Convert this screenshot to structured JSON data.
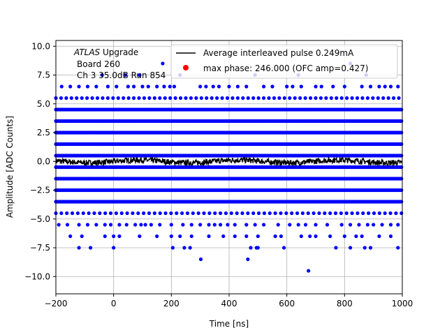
{
  "chart_data": {
    "type": "scatter",
    "xlabel": "Time [ns]",
    "ylabel": "Amplitude [ADC Counts]",
    "xlim": [
      -200,
      1000
    ],
    "ylim": [
      -11.5,
      10.5
    ],
    "grid": true,
    "xticks": [
      -200,
      0,
      200,
      400,
      600,
      800,
      1000
    ],
    "xtick_labels": [
      "−200",
      "0",
      "200",
      "400",
      "600",
      "800",
      "1000"
    ],
    "yticks": [
      -10.0,
      -7.5,
      -5.0,
      -2.5,
      0.0,
      2.5,
      5.0,
      7.5,
      10.0
    ],
    "ytick_labels": [
      "−10.0",
      "−7.5",
      "−5.0",
      "−2.5",
      "0.0",
      "2.5",
      "5.0",
      "7.5",
      "10.0"
    ],
    "annotation": {
      "line1_italic": "ATLAS",
      "line1_rest": " Upgrade",
      "line2": "Board 260",
      "line3": "Ch 3 35.0dB  Run 854"
    },
    "legend": {
      "placement": "top-right",
      "entries": [
        {
          "label": "Average interleaved pulse 0.249mA",
          "marker": "line",
          "color": "#000000"
        },
        {
          "label": "max phase: 246.000 (OFC amp=0.427)",
          "marker": "dot",
          "color": "#ff0000"
        }
      ]
    },
    "series": [
      {
        "kind": "dense_levels",
        "color": "#0000ff",
        "levels": [
          4.5,
          3.5,
          2.5,
          1.5,
          0.5,
          -0.5,
          -1.5,
          -2.5,
          -3.5
        ],
        "dense_levels_extra": [
          {
            "y": 5.5,
            "x_start": -200,
            "x_end": 1000,
            "step": 18
          },
          {
            "y": -4.5,
            "x_start": -200,
            "x_end": 1000,
            "step": 19
          }
        ]
      },
      {
        "kind": "sparse_points",
        "color": "#0000ff",
        "points": [
          [
            -180,
            6.5
          ],
          [
            -150,
            6.5
          ],
          [
            -120,
            6.5
          ],
          [
            -90,
            6.5
          ],
          [
            -60,
            6.5
          ],
          [
            -20,
            6.5
          ],
          [
            10,
            6.5
          ],
          [
            50,
            6.5
          ],
          [
            70,
            6.5
          ],
          [
            100,
            6.5
          ],
          [
            120,
            6.5
          ],
          [
            150,
            6.5
          ],
          [
            175,
            6.5
          ],
          [
            195,
            6.5
          ],
          [
            210,
            6.5
          ],
          [
            300,
            6.5
          ],
          [
            320,
            6.5
          ],
          [
            345,
            6.5
          ],
          [
            365,
            6.5
          ],
          [
            400,
            6.5
          ],
          [
            430,
            6.5
          ],
          [
            460,
            6.5
          ],
          [
            520,
            6.5
          ],
          [
            550,
            6.5
          ],
          [
            600,
            6.5
          ],
          [
            620,
            6.5
          ],
          [
            650,
            6.5
          ],
          [
            700,
            6.5
          ],
          [
            720,
            6.5
          ],
          [
            760,
            6.5
          ],
          [
            800,
            6.5
          ],
          [
            860,
            6.5
          ],
          [
            890,
            6.5
          ],
          [
            920,
            6.5
          ],
          [
            940,
            6.5
          ],
          [
            960,
            6.5
          ],
          [
            985,
            6.5
          ],
          [
            -40,
            7.5
          ],
          [
            40,
            7.5
          ],
          [
            90,
            7.5
          ],
          [
            230,
            7.5
          ],
          [
            490,
            7.5
          ],
          [
            640,
            7.5
          ],
          [
            875,
            7.5
          ],
          [
            170,
            8.5
          ],
          [
            820,
            8.5
          ],
          [
            -190,
            -5.5
          ],
          [
            -160,
            -5.5
          ],
          [
            -120,
            -5.5
          ],
          [
            -90,
            -5.5
          ],
          [
            -60,
            -5.5
          ],
          [
            -30,
            -5.5
          ],
          [
            -10,
            -5.5
          ],
          [
            20,
            -5.5
          ],
          [
            45,
            -5.5
          ],
          [
            75,
            -5.5
          ],
          [
            95,
            -5.5
          ],
          [
            110,
            -5.5
          ],
          [
            130,
            -5.5
          ],
          [
            160,
            -5.5
          ],
          [
            200,
            -5.5
          ],
          [
            240,
            -5.5
          ],
          [
            270,
            -5.5
          ],
          [
            300,
            -5.5
          ],
          [
            330,
            -5.5
          ],
          [
            350,
            -5.5
          ],
          [
            370,
            -5.5
          ],
          [
            395,
            -5.5
          ],
          [
            420,
            -5.5
          ],
          [
            460,
            -5.5
          ],
          [
            490,
            -5.5
          ],
          [
            520,
            -5.5
          ],
          [
            570,
            -5.5
          ],
          [
            610,
            -5.5
          ],
          [
            640,
            -5.5
          ],
          [
            665,
            -5.5
          ],
          [
            700,
            -5.5
          ],
          [
            740,
            -5.5
          ],
          [
            790,
            -5.5
          ],
          [
            820,
            -5.5
          ],
          [
            850,
            -5.5
          ],
          [
            880,
            -5.5
          ],
          [
            900,
            -5.5
          ],
          [
            930,
            -5.5
          ],
          [
            960,
            -5.5
          ],
          [
            985,
            -5.5
          ],
          [
            -150,
            -6.5
          ],
          [
            -110,
            -6.5
          ],
          [
            -30,
            -6.5
          ],
          [
            0,
            -6.5
          ],
          [
            20,
            -6.5
          ],
          [
            90,
            -6.5
          ],
          [
            150,
            -6.5
          ],
          [
            200,
            -6.5
          ],
          [
            230,
            -6.5
          ],
          [
            270,
            -6.5
          ],
          [
            330,
            -6.5
          ],
          [
            380,
            -6.5
          ],
          [
            420,
            -6.5
          ],
          [
            460,
            -6.5
          ],
          [
            500,
            -6.5
          ],
          [
            560,
            -6.5
          ],
          [
            580,
            -6.5
          ],
          [
            650,
            -6.5
          ],
          [
            680,
            -6.5
          ],
          [
            700,
            -6.5
          ],
          [
            750,
            -6.5
          ],
          [
            800,
            -6.5
          ],
          [
            840,
            -6.5
          ],
          [
            860,
            -6.5
          ],
          [
            920,
            -6.5
          ],
          [
            960,
            -6.5
          ],
          [
            -120,
            -7.5
          ],
          [
            -80,
            -7.5
          ],
          [
            0,
            -7.5
          ],
          [
            205,
            -7.5
          ],
          [
            245,
            -7.5
          ],
          [
            265,
            -7.5
          ],
          [
            475,
            -7.5
          ],
          [
            495,
            -7.5
          ],
          [
            500,
            -7.5
          ],
          [
            590,
            -7.5
          ],
          [
            770,
            -7.5
          ],
          [
            820,
            -7.5
          ],
          [
            870,
            -7.5
          ],
          [
            890,
            -7.5
          ],
          [
            985,
            -7.5
          ],
          [
            302,
            -8.5
          ],
          [
            465,
            -8.5
          ],
          [
            675,
            -9.5
          ]
        ]
      },
      {
        "kind": "noisy_line",
        "name": "Average interleaved pulse 0.249mA",
        "color": "#000000",
        "y_mean": 0.0,
        "y_noise": 0.25,
        "x_start": -200,
        "x_end": 1000
      }
    ]
  }
}
